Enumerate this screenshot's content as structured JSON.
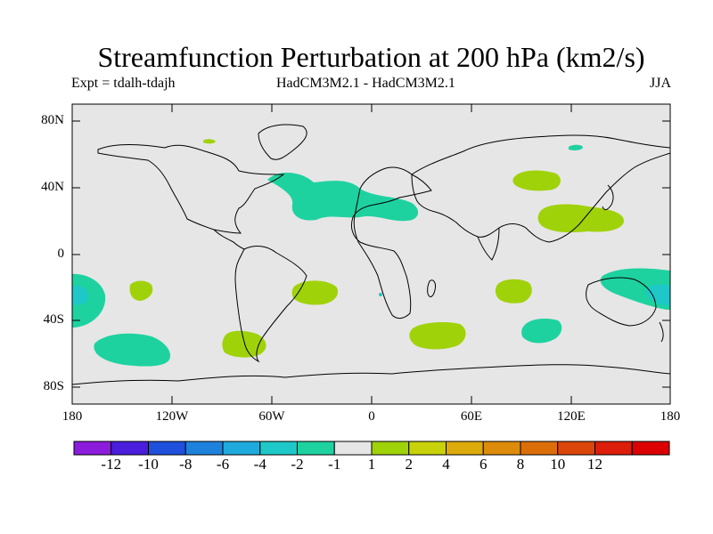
{
  "title": "Streamfunction Perturbation at 200 hPa (km2/s)",
  "subtitle_left": "Expt = tdalh-tdajh",
  "subtitle_center": "HadCM3M2.1 - HadCM3M2.1",
  "subtitle_right": "JJA",
  "map": {
    "background": "#e6e6e6",
    "lat_labels": [
      "80N",
      "40N",
      "0",
      "40S",
      "80S"
    ],
    "lon_labels": [
      "180",
      "120W",
      "60W",
      "0",
      "60E",
      "120E",
      "180"
    ]
  },
  "colorbar": {
    "colors": [
      "#8c1cdc",
      "#4a1edc",
      "#1e50dc",
      "#1e82dc",
      "#1eaadc",
      "#1ec8c8",
      "#1ed2a0",
      "#e6e6e6",
      "#a0d20a",
      "#c8d20a",
      "#dcaa0a",
      "#dc8c0a",
      "#dc6e0a",
      "#dc460a",
      "#dc1e0a",
      "#dc0000"
    ],
    "labels": [
      "-12",
      "-10",
      "-8",
      "-6",
      "-4",
      "-2",
      "-1",
      "1",
      "2",
      "4",
      "6",
      "8",
      "10",
      "12"
    ]
  },
  "anomalies": [
    {
      "name": "anomaly-atlantic-negative",
      "color": "#1ed2a0"
    },
    {
      "name": "anomaly-pacific-west-negative",
      "color": "#1ed2a0"
    },
    {
      "name": "anomaly-south-pacific-negative",
      "color": "#1ed2a0"
    },
    {
      "name": "anomaly-australia-negative",
      "color": "#1ed2a0"
    },
    {
      "name": "anomaly-strong-negative-west",
      "color": "#1ec8c8"
    },
    {
      "name": "anomaly-strong-negative-east",
      "color": "#1ec8c8"
    },
    {
      "name": "anomaly-canada-positive",
      "color": "#a0d20a"
    },
    {
      "name": "anomaly-central-asia-positive",
      "color": "#a0d20a"
    },
    {
      "name": "anomaly-east-asia-positive",
      "color": "#a0d20a"
    },
    {
      "name": "anomaly-siberia-positive",
      "color": "#1ed2a0"
    },
    {
      "name": "anomaly-south-atlantic-positive",
      "color": "#a0d20a"
    },
    {
      "name": "anomaly-pacific-positive",
      "color": "#a0d20a"
    },
    {
      "name": "anomaly-south-america-positive",
      "color": "#a0d20a"
    },
    {
      "name": "anomaly-south-indian-positive",
      "color": "#a0d20a"
    },
    {
      "name": "anomaly-indian-ocean-positive",
      "color": "#a0d20a"
    },
    {
      "name": "anomaly-sw-pacific-negative",
      "color": "#1ed2a0"
    }
  ]
}
